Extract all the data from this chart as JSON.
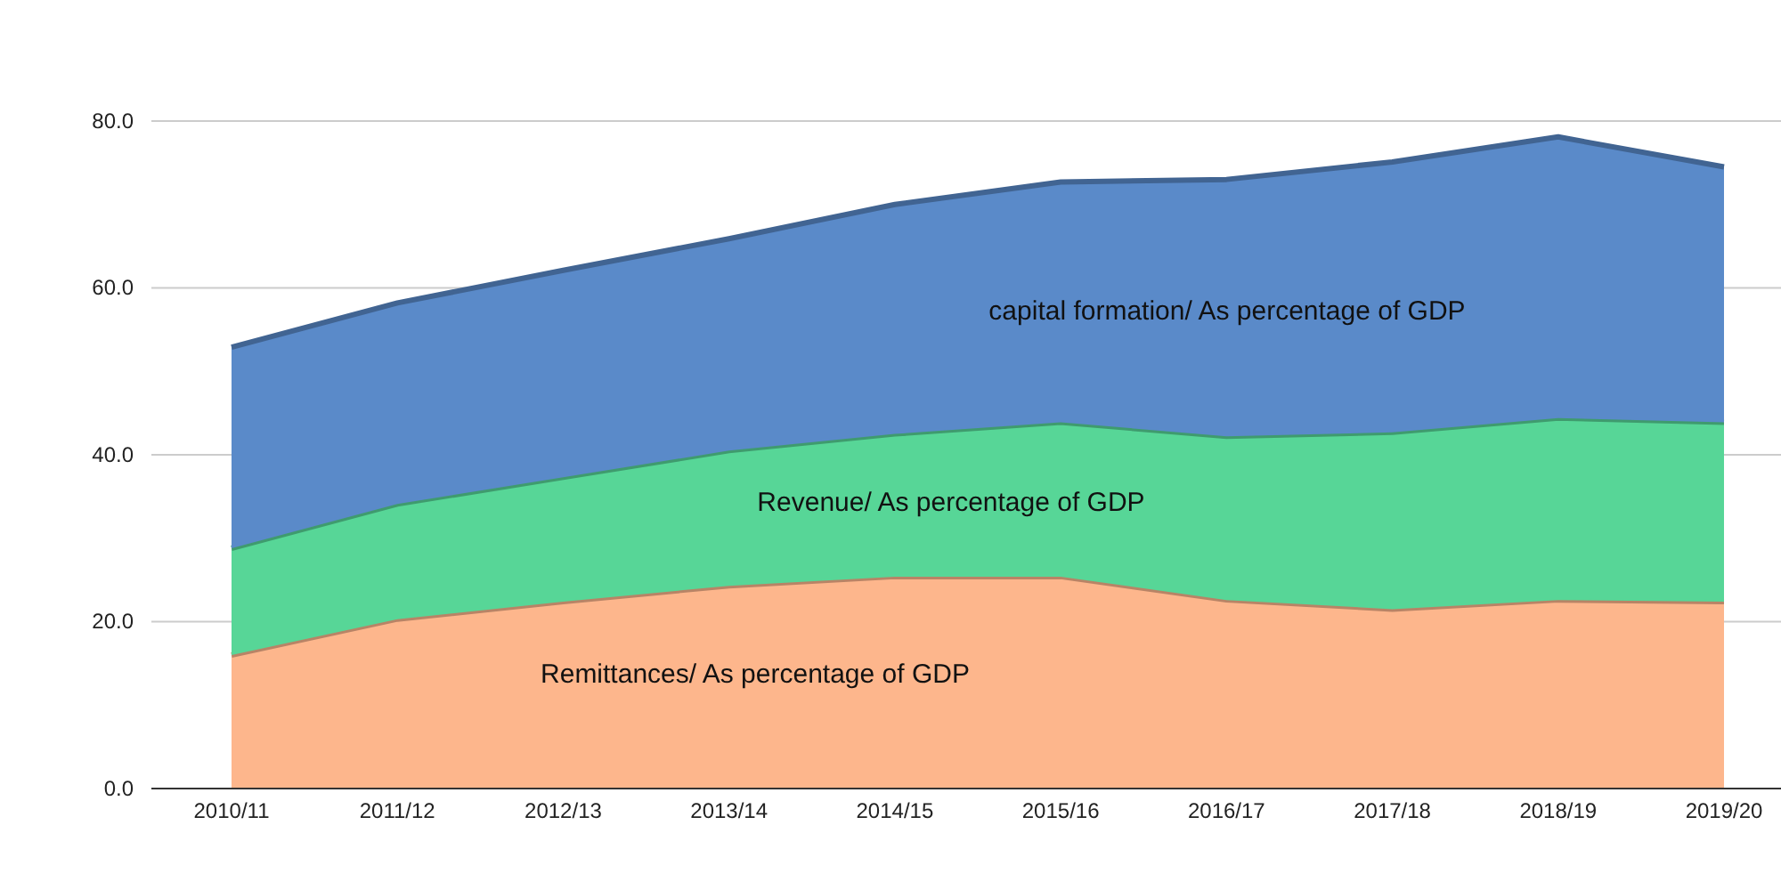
{
  "chart_data": {
    "type": "area",
    "stacked": true,
    "categories": [
      "2010/11",
      "2011/12",
      "2012/13",
      "2013/14",
      "2014/15",
      "2015/16",
      "2016/17",
      "2017/18",
      "2018/19",
      "2019/20"
    ],
    "series": [
      {
        "name": "Remittances/ As percentage of GDP",
        "color": "#fdb68c",
        "values": [
          16.0,
          20.3,
          22.4,
          24.3,
          25.4,
          25.4,
          22.6,
          21.5,
          22.6,
          22.4
        ]
      },
      {
        "name": "Revenue/ As percentage of GDP",
        "color": "#57d697",
        "values": [
          12.8,
          13.8,
          14.9,
          16.2,
          17.1,
          18.5,
          19.6,
          21.2,
          21.8,
          21.5
        ]
      },
      {
        "name": "capital formation/ As percentage of GDP",
        "color": "#5a8ac9",
        "values": [
          24.1,
          24.1,
          24.8,
          25.4,
          27.5,
          28.8,
          30.8,
          32.4,
          33.7,
          30.6
        ]
      }
    ],
    "ylim": [
      0,
      80
    ],
    "yticks": [
      {
        "value": 0,
        "label": "0.0"
      },
      {
        "value": 20,
        "label": "20.0"
      },
      {
        "value": 40,
        "label": "40.0"
      },
      {
        "value": 60,
        "label": "60.0"
      },
      {
        "value": 80,
        "label": "80.0"
      }
    ],
    "grid": "y",
    "legend": false
  }
}
